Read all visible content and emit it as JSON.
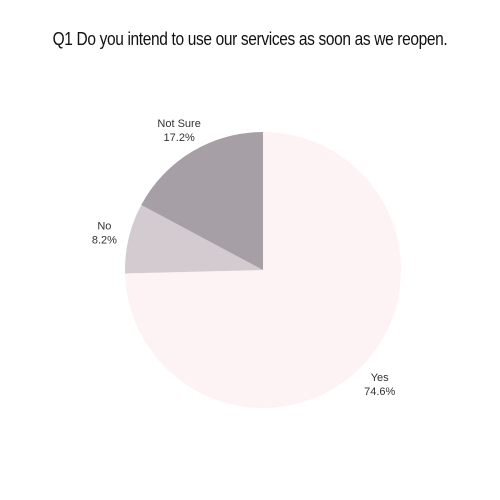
{
  "chart_data": {
    "type": "pie",
    "title": "Q1 Do you intend to use our services as soon as we reopen.",
    "slices": [
      {
        "label": "Yes",
        "value": 74.6,
        "value_label": "74.6%",
        "color": "#fdf3f4"
      },
      {
        "label": "No",
        "value": 8.2,
        "value_label": "8.2%",
        "color": "#d3cbd0"
      },
      {
        "label": "Not Sure",
        "value": 17.2,
        "value_label": "17.2%",
        "color": "#a69fa5"
      }
    ],
    "start_angle": "top",
    "direction": "clockwise",
    "legend": "none"
  }
}
